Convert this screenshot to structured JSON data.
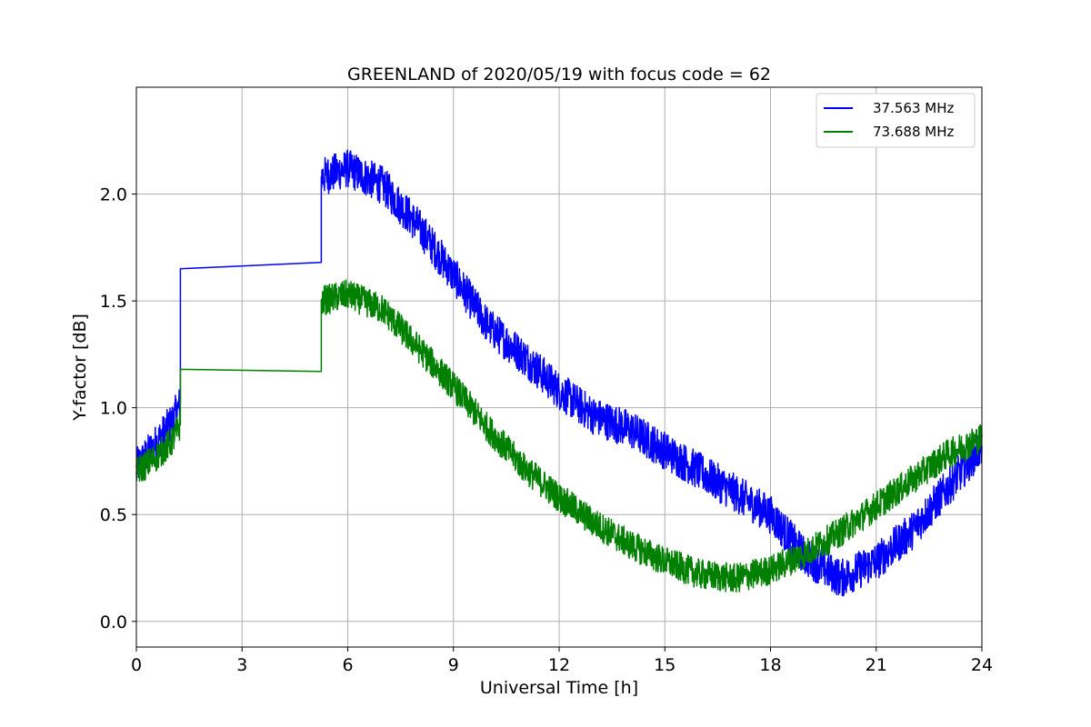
{
  "chart_data": {
    "type": "line",
    "title": "GREENLAND of 2020/05/19 with focus code = 62",
    "xlabel": "Universal Time [h]",
    "ylabel": "Y-factor [dB]",
    "xlim": [
      0,
      24
    ],
    "ylim": [
      -0.12,
      2.5
    ],
    "xticks": [
      0,
      3,
      6,
      9,
      12,
      15,
      18,
      21,
      24
    ],
    "xtick_labels": [
      "0",
      "3",
      "6",
      "9",
      "12",
      "15",
      "18",
      "21",
      "24"
    ],
    "yticks": [
      0.0,
      0.5,
      1.0,
      1.5,
      2.0
    ],
    "ytick_labels": [
      "0.0",
      "0.5",
      "1.0",
      "1.5",
      "2.0"
    ],
    "grid": true,
    "legend_position": "upper right",
    "series": [
      {
        "name": "37.563 MHz",
        "color": "#0000ff",
        "noise_amplitude": 0.09,
        "points": [
          [
            0,
            0.72
          ],
          [
            0.5,
            0.82
          ],
          [
            1.0,
            0.93
          ],
          [
            1.25,
            1.02
          ],
          [
            1.25,
            1.65
          ],
          [
            5.25,
            1.68
          ],
          [
            5.25,
            2.08
          ],
          [
            6,
            2.12
          ],
          [
            7,
            2.04
          ],
          [
            8,
            1.85
          ],
          [
            9,
            1.62
          ],
          [
            10,
            1.38
          ],
          [
            11,
            1.24
          ],
          [
            12,
            1.08
          ],
          [
            13,
            0.96
          ],
          [
            14,
            0.9
          ],
          [
            15,
            0.8
          ],
          [
            16,
            0.7
          ],
          [
            17,
            0.6
          ],
          [
            18,
            0.5
          ],
          [
            19,
            0.3
          ],
          [
            20,
            0.2
          ],
          [
            21,
            0.28
          ],
          [
            22,
            0.42
          ],
          [
            23,
            0.62
          ],
          [
            24,
            0.82
          ]
        ]
      },
      {
        "name": "73.688 MHz",
        "color": "#008000",
        "noise_amplitude": 0.07,
        "points": [
          [
            0,
            0.7
          ],
          [
            0.5,
            0.76
          ],
          [
            1.0,
            0.84
          ],
          [
            1.25,
            0.92
          ],
          [
            1.25,
            1.18
          ],
          [
            5.25,
            1.17
          ],
          [
            5.25,
            1.5
          ],
          [
            6,
            1.53
          ],
          [
            7,
            1.46
          ],
          [
            8,
            1.28
          ],
          [
            9,
            1.1
          ],
          [
            10,
            0.9
          ],
          [
            11,
            0.72
          ],
          [
            12,
            0.58
          ],
          [
            13,
            0.46
          ],
          [
            14,
            0.36
          ],
          [
            15,
            0.28
          ],
          [
            16,
            0.22
          ],
          [
            17,
            0.2
          ],
          [
            18,
            0.24
          ],
          [
            19,
            0.32
          ],
          [
            20,
            0.42
          ],
          [
            21,
            0.54
          ],
          [
            22,
            0.66
          ],
          [
            23,
            0.78
          ],
          [
            24,
            0.86
          ]
        ]
      }
    ]
  }
}
